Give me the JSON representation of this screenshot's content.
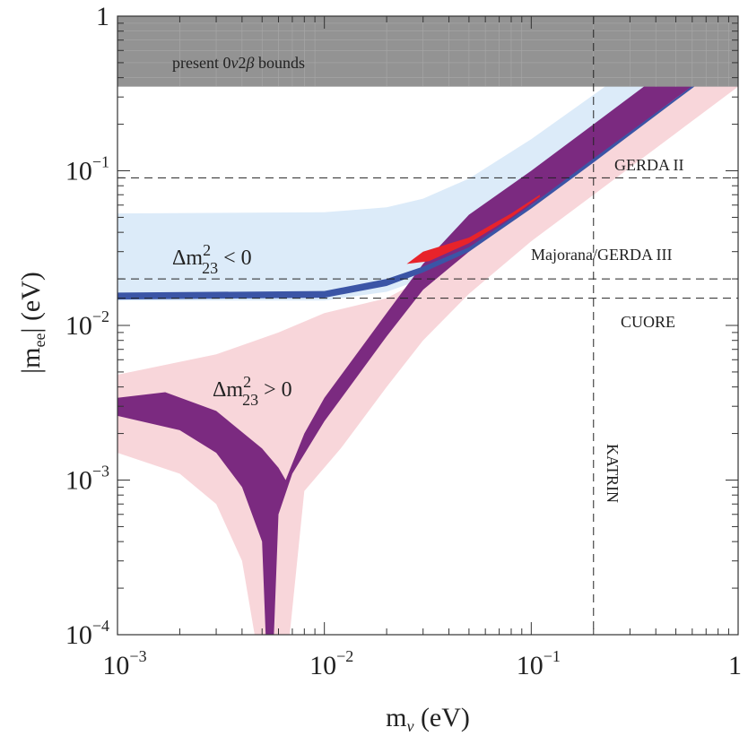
{
  "chart_data": {
    "type": "line",
    "xscale": "log",
    "yscale": "log",
    "xlim": [
      0.001,
      1
    ],
    "ylim": [
      0.0001,
      1
    ],
    "xlabel": {
      "base": "m",
      "sub": "ν",
      "unit": "(eV)"
    },
    "ylabel": {
      "pre": "|m",
      "sub": "ee",
      "post": "| (eV)"
    },
    "x_ticks": [
      {
        "value": 0.001,
        "base": "10",
        "exp": "−3"
      },
      {
        "value": 0.01,
        "base": "10",
        "exp": "−2"
      },
      {
        "value": 0.1,
        "base": "10",
        "exp": "−1"
      },
      {
        "value": 1,
        "base": "1",
        "exp": ""
      }
    ],
    "y_ticks": [
      {
        "value": 0.0001,
        "base": "10",
        "exp": "−4"
      },
      {
        "value": 0.001,
        "base": "10",
        "exp": "−3"
      },
      {
        "value": 0.01,
        "base": "10",
        "exp": "−2"
      },
      {
        "value": 0.1,
        "base": "10",
        "exp": "−1"
      },
      {
        "value": 1,
        "base": "1",
        "exp": ""
      }
    ],
    "excluded_region": {
      "label": "present 0ν2β bounds",
      "ymin": 0.35,
      "color": "#939393"
    },
    "horizontal_limits": [
      {
        "name": "GERDA II",
        "value": 0.09,
        "label": "GERDA II"
      },
      {
        "name": "Majorana/GERDA III",
        "value": 0.02,
        "label": "Majorana/GERDA III"
      },
      {
        "name": "CUORE",
        "value": 0.015,
        "label": "CUORE"
      }
    ],
    "vertical_limits": [
      {
        "name": "KATRIN",
        "value": 0.2,
        "label": "KATRIN"
      }
    ],
    "series": [
      {
        "name": "inverted-hierarchy-3sigma",
        "label": {
          "delta": "Δm",
          "sup": "2",
          "sub": "23",
          "rel": " < 0"
        },
        "color": "#dcebf9",
        "lower": [
          [
            0.001,
            0.0145
          ],
          [
            0.01,
            0.0145
          ],
          [
            0.02,
            0.0165
          ],
          [
            0.03,
            0.02
          ],
          [
            0.05,
            0.026
          ],
          [
            0.1,
            0.041
          ],
          [
            0.2,
            0.075
          ],
          [
            0.5,
            0.18
          ],
          [
            1,
            0.36
          ]
        ],
        "upper": [
          [
            0.001,
            0.053
          ],
          [
            0.01,
            0.054
          ],
          [
            0.02,
            0.058
          ],
          [
            0.03,
            0.066
          ],
          [
            0.05,
            0.089
          ],
          [
            0.1,
            0.16
          ],
          [
            0.2,
            0.31
          ],
          [
            0.5,
            0.75
          ],
          [
            1,
            1.0
          ]
        ]
      },
      {
        "name": "normal-hierarchy-3sigma",
        "label": {
          "delta": "Δm",
          "sup": "2",
          "sub": "23",
          "rel": " > 0"
        },
        "color": "#f8d6da",
        "lower": [
          [
            0.001,
            0.0015
          ],
          [
            0.002,
            0.0011
          ],
          [
            0.003,
            0.0007
          ],
          [
            0.004,
            0.0003
          ],
          [
            0.0046,
            0.0001
          ],
          [
            0.0068,
            0.0001
          ],
          [
            0.008,
            0.00085
          ],
          [
            0.012,
            0.0016
          ],
          [
            0.02,
            0.004
          ],
          [
            0.03,
            0.008
          ],
          [
            0.05,
            0.016
          ],
          [
            0.1,
            0.035
          ],
          [
            0.2,
            0.07
          ],
          [
            0.5,
            0.175
          ],
          [
            1,
            0.35
          ]
        ],
        "upper": [
          [
            0.001,
            0.0048
          ],
          [
            0.003,
            0.0065
          ],
          [
            0.006,
            0.009
          ],
          [
            0.01,
            0.012
          ],
          [
            0.02,
            0.015
          ],
          [
            0.03,
            0.02
          ],
          [
            0.05,
            0.032
          ],
          [
            0.1,
            0.062
          ],
          [
            0.2,
            0.12
          ],
          [
            0.5,
            0.3
          ],
          [
            1,
            0.58
          ]
        ]
      },
      {
        "name": "normal-hierarchy-best-fit",
        "color": "#7b2a80",
        "lower": [
          [
            0.001,
            0.0026
          ],
          [
            0.002,
            0.0021
          ],
          [
            0.003,
            0.0015
          ],
          [
            0.004,
            0.0009
          ],
          [
            0.005,
            0.0004
          ],
          [
            0.0052,
            0.0001
          ],
          [
            0.0057,
            0.0001
          ],
          [
            0.006,
            0.0006
          ],
          [
            0.007,
            0.0011
          ],
          [
            0.01,
            0.0024
          ],
          [
            0.02,
            0.0085
          ],
          [
            0.03,
            0.017
          ],
          [
            0.05,
            0.03
          ],
          [
            0.1,
            0.06
          ],
          [
            0.2,
            0.118
          ],
          [
            0.5,
            0.295
          ],
          [
            1,
            0.58
          ]
        ],
        "upper": [
          [
            0.001,
            0.0034
          ],
          [
            0.0017,
            0.0037
          ],
          [
            0.003,
            0.0028
          ],
          [
            0.005,
            0.0016
          ],
          [
            0.006,
            0.0012
          ],
          [
            0.0065,
            0.001
          ],
          [
            0.008,
            0.002
          ],
          [
            0.01,
            0.0034
          ],
          [
            0.02,
            0.012
          ],
          [
            0.03,
            0.025
          ],
          [
            0.05,
            0.052
          ],
          [
            0.1,
            0.1
          ],
          [
            0.2,
            0.2
          ],
          [
            0.5,
            0.5
          ],
          [
            1,
            1.0
          ]
        ]
      },
      {
        "name": "inverted-hierarchy-best-fit",
        "color": "#3b55a6",
        "lower": [
          [
            0.001,
            0.0147
          ],
          [
            0.01,
            0.0151
          ],
          [
            0.02,
            0.018
          ],
          [
            0.03,
            0.022
          ],
          [
            0.05,
            0.03
          ],
          [
            0.1,
            0.057
          ],
          [
            0.2,
            0.113
          ],
          [
            0.5,
            0.285
          ],
          [
            1,
            0.57
          ]
        ],
        "upper": [
          [
            0.001,
            0.0163
          ],
          [
            0.01,
            0.0167
          ],
          [
            0.02,
            0.02
          ],
          [
            0.03,
            0.024
          ],
          [
            0.05,
            0.032
          ],
          [
            0.1,
            0.06
          ],
          [
            0.2,
            0.12
          ],
          [
            0.5,
            0.295
          ],
          [
            1,
            0.59
          ]
        ]
      },
      {
        "name": "inverted-hierarchy-alternative",
        "color": "#e8232a",
        "lower": [
          [
            0.025,
            0.025
          ],
          [
            0.032,
            0.026
          ],
          [
            0.05,
            0.034
          ],
          [
            0.08,
            0.05
          ],
          [
            0.11,
            0.068
          ]
        ],
        "upper": [
          [
            0.025,
            0.025
          ],
          [
            0.03,
            0.03
          ],
          [
            0.05,
            0.037
          ],
          [
            0.08,
            0.053
          ],
          [
            0.11,
            0.07
          ]
        ]
      }
    ]
  }
}
